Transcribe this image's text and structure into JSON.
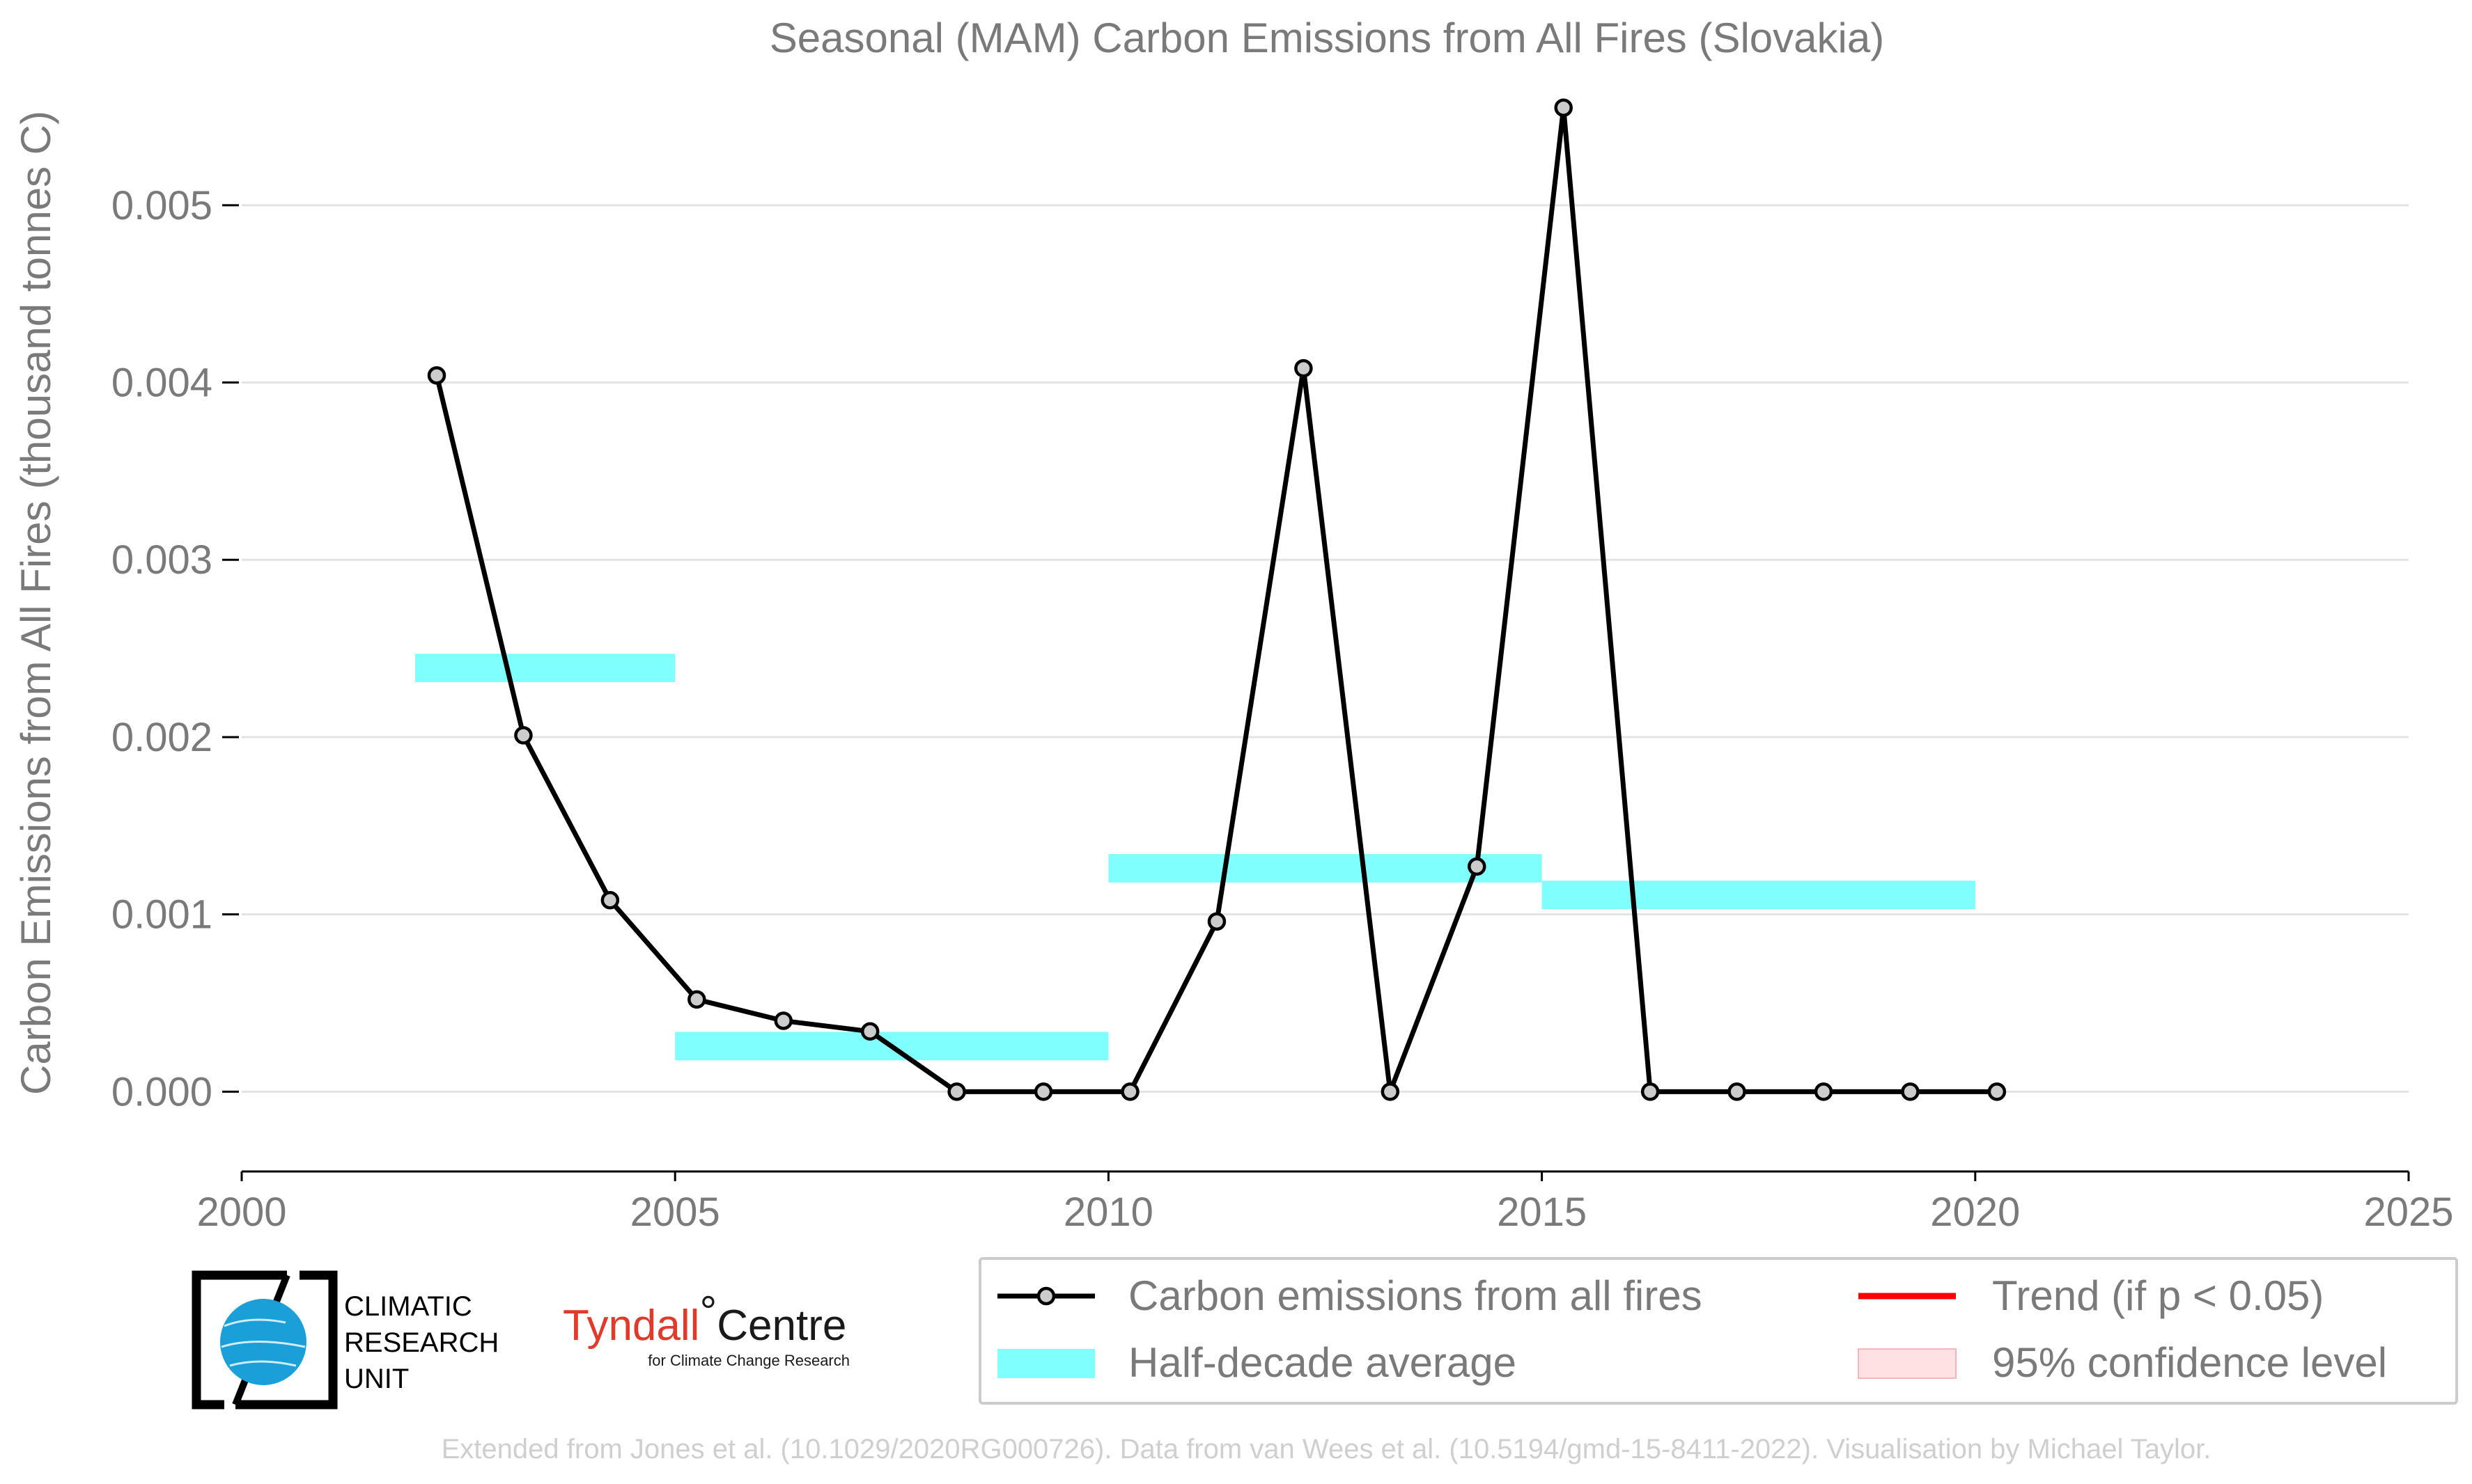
{
  "chart_data": {
    "type": "line",
    "title": "Seasonal (MAM) Carbon Emissions from All Fires (Slovakia)",
    "xlabel": "",
    "ylabel": "Carbon Emissions from All Fires (thousand tonnes C)",
    "xlim": [
      2000,
      2025
    ],
    "ylim": [
      -0.00045,
      0.0056
    ],
    "x_ticks": [
      2000,
      2005,
      2010,
      2015,
      2020,
      2025
    ],
    "x_tick_labels": [
      "2000",
      "2005",
      "2010",
      "2015",
      "2020",
      "2025"
    ],
    "y_ticks": [
      0.0,
      0.001,
      0.002,
      0.003,
      0.004,
      0.005
    ],
    "y_tick_labels": [
      "0.000",
      "0.001",
      "0.002",
      "0.003",
      "0.004",
      "0.005"
    ],
    "grid": "horizontal",
    "legend_position": "bottom-right",
    "series": [
      {
        "name": "Carbon emissions from all fires",
        "color": "#000000",
        "x": [
          2002.25,
          2003.25,
          2004.25,
          2005.25,
          2006.25,
          2007.25,
          2008.25,
          2009.25,
          2010.25,
          2011.25,
          2012.25,
          2013.25,
          2014.25,
          2015.25,
          2016.25,
          2017.25,
          2018.25,
          2019.25,
          2020.25
        ],
        "values": [
          0.00404,
          0.00201,
          0.00108,
          0.00052,
          0.0004,
          0.00034,
          0.0,
          0.0,
          0.0,
          0.00096,
          0.00408,
          0.0,
          0.00127,
          0.00555,
          0.0,
          0.0,
          0.0,
          0.0,
          0.0
        ]
      }
    ],
    "half_decade_averages": {
      "name": "Half-decade average",
      "color": "#80ffff",
      "segments": [
        {
          "start": 2002,
          "end": 2005,
          "value": 0.00239
        },
        {
          "start": 2005,
          "end": 2010,
          "value": 0.000257
        },
        {
          "start": 2010,
          "end": 2015,
          "value": 0.00126
        },
        {
          "start": 2015,
          "end": 2020,
          "value": 0.00111
        }
      ]
    },
    "legend": [
      {
        "label": "Carbon emissions from all fires",
        "symbol": "line-marker",
        "color": "#000000"
      },
      {
        "label": "Half-decade average",
        "symbol": "patch",
        "color": "#80ffff"
      },
      {
        "label": "Trend (if p < 0.05)",
        "symbol": "line",
        "color": "#ff0000"
      },
      {
        "label": "95% confidence level",
        "symbol": "patch",
        "color": "#ffe0e3"
      }
    ]
  },
  "logos": {
    "cru": {
      "line1": "CLIMATIC",
      "line2": "RESEARCH",
      "line3": "UNIT"
    },
    "tyndall": {
      "name": "Tyndall",
      "degree": "°",
      "centre": "Centre",
      "subtitle": "for Climate Change Research"
    }
  },
  "credit": "Extended from Jones et al. (10.1029/2020RG000726). Data from van Wees et al. (10.5194/gmd-15-8411-2022). Visualisation by Michael Taylor."
}
